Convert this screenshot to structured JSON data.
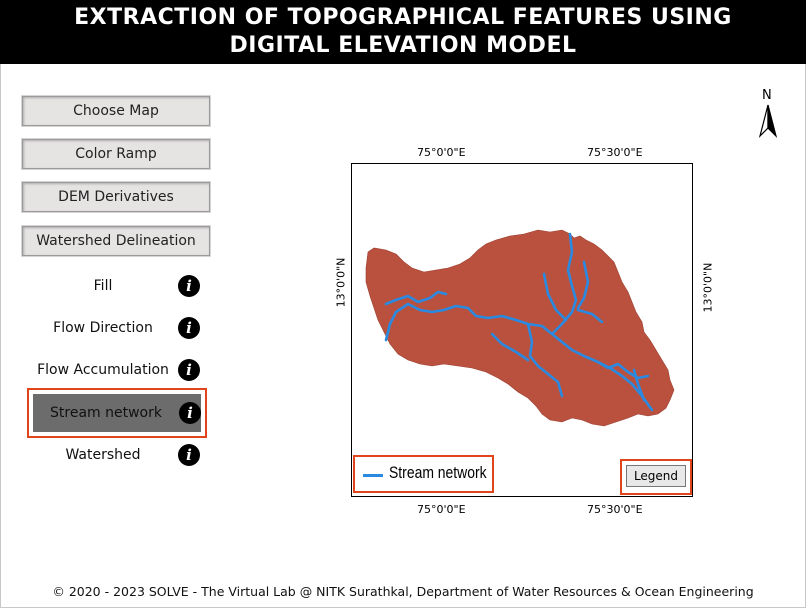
{
  "header": {
    "title_line1": "EXTRACTION OF TOPOGRAPHICAL FEATURES USING",
    "title_line2": "DIGITAL ELEVATION MODEL"
  },
  "buttons": [
    {
      "label": "Choose Map"
    },
    {
      "label": "Color Ramp"
    },
    {
      "label": "DEM Derivatives"
    },
    {
      "label": "Watershed Delineation"
    }
  ],
  "options": [
    {
      "label": "Fill",
      "info": "i"
    },
    {
      "label": "Flow Direction",
      "info": "i"
    },
    {
      "label": "Flow Accumulation",
      "info": "i"
    },
    {
      "label": "Stream network",
      "info": "i",
      "selected": true
    },
    {
      "label": "Watershed",
      "info": "i"
    }
  ],
  "map": {
    "north_label": "N",
    "top_coords": [
      "75°0'0\"E",
      "75°30'0\"E"
    ],
    "bottom_coords": [
      "75°0'0\"E",
      "75°30'0\"E"
    ],
    "left_coord": "13°0'0\"N",
    "right_coord": "13°0'0\"N",
    "legend_label": "Stream network",
    "legend_button": "Legend",
    "colors": {
      "watershed": "#b9513e",
      "stream": "#2a8ae2",
      "highlight": "#e0451b"
    }
  },
  "footer": {
    "text": "© 2020 - 2023 SOLVE - The Virtual Lab @ NITK Surathkal, Department of Water Resources & Ocean Engineering"
  }
}
